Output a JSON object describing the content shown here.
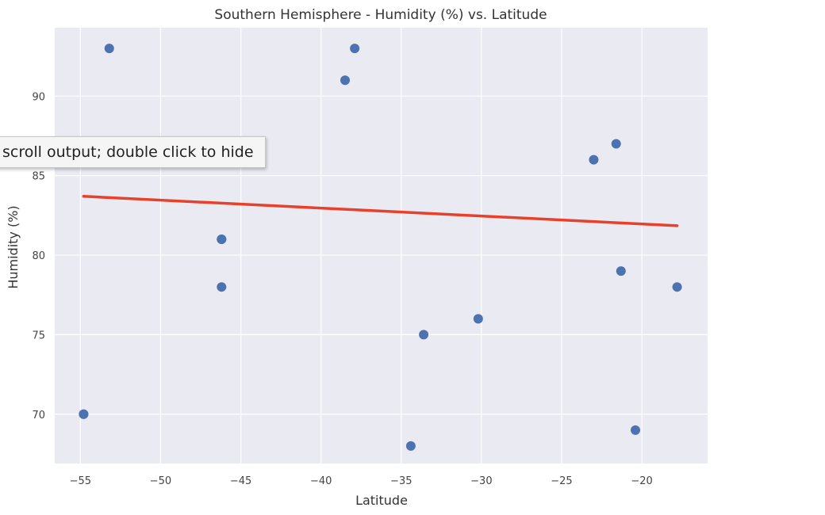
{
  "chart_data": {
    "type": "scatter",
    "title": "Southern Hemisphere - Humidity (%) vs. Latitude",
    "xlabel": "Latitude",
    "ylabel": "Humidity (%)",
    "xlim": [
      -56.6,
      -15.9
    ],
    "ylim": [
      66.9,
      94.3
    ],
    "xticks": [
      -55,
      -50,
      -45,
      -40,
      -35,
      -30,
      -25,
      -20
    ],
    "yticks": [
      70,
      75,
      80,
      85,
      90
    ],
    "xtick_labels": [
      "−55",
      "−50",
      "−45",
      "−40",
      "−35",
      "−30",
      "−25",
      "−20"
    ],
    "ytick_labels": [
      "70",
      "75",
      "80",
      "85",
      "90"
    ],
    "grid": true,
    "points": {
      "x": [
        -54.8,
        -54.8,
        -53.2,
        -46.2,
        -46.2,
        -46.2,
        -38.5,
        -37.9,
        -34.4,
        -33.6,
        -30.2,
        -23.0,
        -21.6,
        -21.3,
        -20.4,
        -17.8
      ],
      "y": [
        70,
        70,
        93,
        81,
        81,
        78,
        91,
        93,
        68,
        75,
        76,
        86,
        87,
        79,
        69,
        78
      ],
      "color": "#4c72b0"
    },
    "regression_line": {
      "x": [
        -54.8,
        -17.8
      ],
      "y": [
        83.7,
        81.85
      ],
      "color": "#e8402a"
    },
    "background_color": "#eaeaf2",
    "grid_color": "#ffffff"
  },
  "tooltip": {
    "text": "scroll output; double click to hide"
  }
}
